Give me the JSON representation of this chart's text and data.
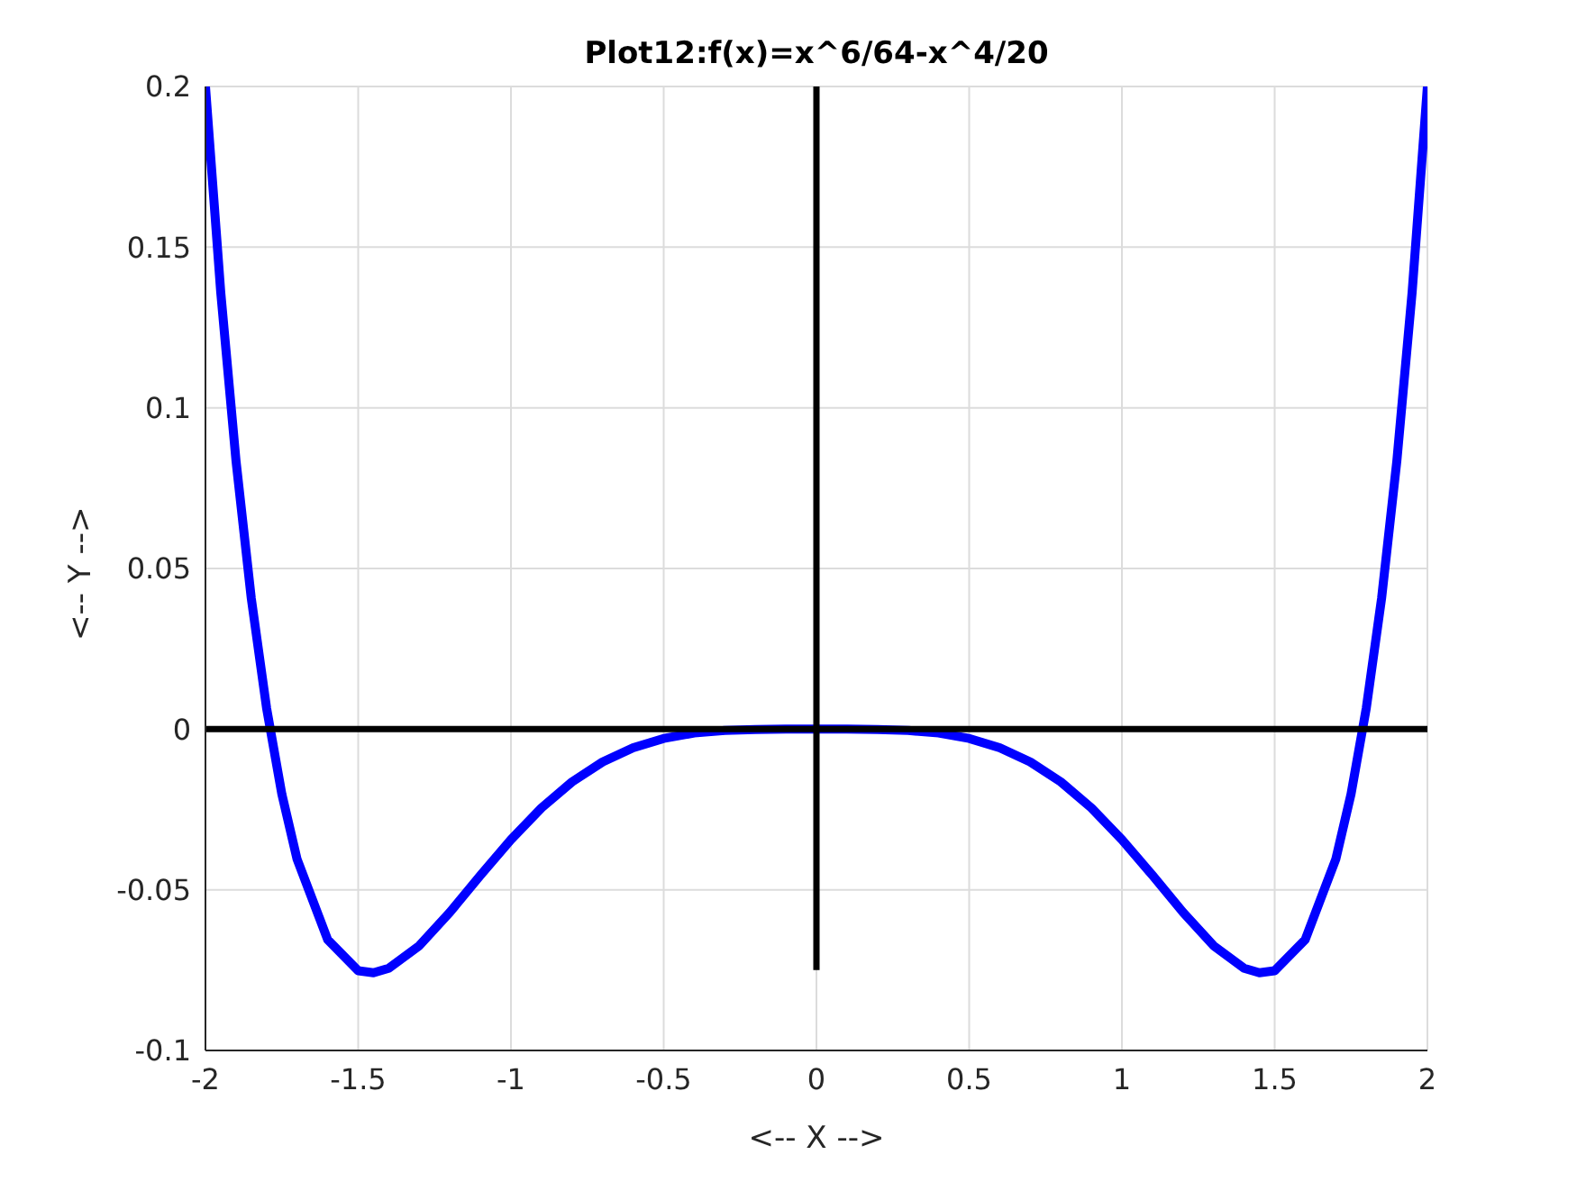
{
  "chart_data": {
    "type": "line",
    "title": "Plot12:f(x)=x^6/64-x^4/20",
    "xlabel": "<-- X -->",
    "ylabel": "<-- Y -->",
    "xlim": [
      -2,
      2
    ],
    "ylim": [
      -0.1,
      0.2
    ],
    "xticks": [
      -2,
      -1.5,
      -1,
      -0.5,
      0,
      0.5,
      1,
      1.5,
      2
    ],
    "yticks": [
      -0.1,
      -0.05,
      0,
      0.05,
      0.1,
      0.15,
      0.2
    ],
    "grid": true,
    "marker": "none",
    "line_style": "solid",
    "series": [
      {
        "color": "#0000ff",
        "x": [
          -2,
          -1.95,
          -1.9,
          -1.85,
          -1.8,
          -1.75,
          -1.7,
          -1.6,
          -1.5,
          -1.45,
          -1.4,
          -1.3,
          -1.2,
          -1.1,
          -1,
          -0.9,
          -0.8,
          -0.7,
          -0.6,
          -0.5,
          -0.4,
          -0.3,
          -0.2,
          -0.1,
          0,
          0.1,
          0.2,
          0.3,
          0.4,
          0.5,
          0.6,
          0.7,
          0.8,
          0.9,
          1,
          1.1,
          1.2,
          1.3,
          1.4,
          1.45,
          1.5,
          1.6,
          1.7,
          1.75,
          1.8,
          1.85,
          1.9,
          1.95,
          2
        ],
        "values": [
          0.2,
          0.136,
          0.0835,
          0.0407,
          0.0066,
          -0.0202,
          -0.0405,
          -0.0655,
          -0.0752,
          -0.0758,
          -0.0744,
          -0.0674,
          -0.057,
          -0.0455,
          -0.0344,
          -0.0245,
          -0.0164,
          -0.0102,
          -0.0058,
          -0.0029,
          -0.0012,
          -0.0004,
          -0.0001,
          0,
          0,
          0,
          -0.0001,
          -0.0004,
          -0.0012,
          -0.0029,
          -0.0058,
          -0.0102,
          -0.0164,
          -0.0245,
          -0.0344,
          -0.0455,
          -0.057,
          -0.0674,
          -0.0744,
          -0.0758,
          -0.0752,
          -0.0655,
          -0.0405,
          -0.0202,
          0.0066,
          0.0407,
          0.0835,
          0.136,
          0.2
        ]
      },
      {
        "color": "#000000",
        "x": [
          -2,
          2
        ],
        "values": [
          0,
          0
        ]
      },
      {
        "color": "#000000",
        "x": [
          0,
          0
        ],
        "values": [
          -0.075,
          0.2
        ]
      }
    ]
  }
}
